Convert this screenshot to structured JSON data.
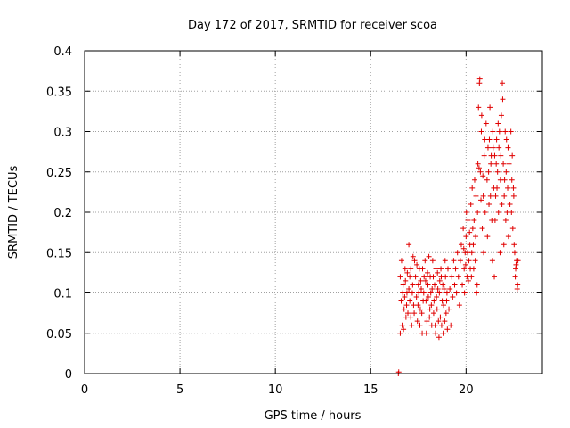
{
  "chart_data": {
    "type": "scatter",
    "title": "Day 172 of 2017, SRMTID for receiver scoa",
    "xlabel": "GPS time / hours",
    "ylabel": "SRMTID / TECUs",
    "xlim": [
      0,
      24
    ],
    "ylim": [
      0,
      0.4
    ],
    "x_ticks": [
      "0",
      "5",
      "10",
      "15",
      "20"
    ],
    "x_tick_values": [
      0,
      5,
      10,
      15,
      20
    ],
    "y_ticks": [
      "0",
      "0.05",
      "0.1",
      "0.15",
      "0.2",
      "0.25",
      "0.3",
      "0.35",
      "0.4"
    ],
    "y_tick_values": [
      0,
      0.05,
      0.1,
      0.15,
      0.2,
      0.25,
      0.3,
      0.35,
      0.4
    ],
    "grid": true,
    "marker": "+",
    "color": "#e00000",
    "points": [
      [
        16.45,
        0.0
      ],
      [
        16.47,
        0.002
      ],
      [
        16.55,
        0.12
      ],
      [
        16.6,
        0.09
      ],
      [
        16.65,
        0.06
      ],
      [
        16.7,
        0.11
      ],
      [
        16.75,
        0.08
      ],
      [
        16.8,
        0.13
      ],
      [
        16.85,
        0.07
      ],
      [
        16.9,
        0.1
      ],
      [
        16.55,
        0.05
      ],
      [
        16.62,
        0.14
      ],
      [
        16.68,
        0.1
      ],
      [
        16.72,
        0.055
      ],
      [
        16.78,
        0.095
      ],
      [
        16.82,
        0.115
      ],
      [
        16.88,
        0.085
      ],
      [
        16.92,
        0.125
      ],
      [
        16.95,
        0.075
      ],
      [
        17.0,
        0.105
      ],
      [
        17.05,
        0.09
      ],
      [
        17.1,
        0.13
      ],
      [
        17.15,
        0.06
      ],
      [
        17.2,
        0.11
      ],
      [
        17.25,
        0.085
      ],
      [
        17.3,
        0.14
      ],
      [
        17.0,
        0.16
      ],
      [
        17.05,
        0.12
      ],
      [
        17.1,
        0.07
      ],
      [
        17.18,
        0.1
      ],
      [
        17.22,
        0.145
      ],
      [
        17.28,
        0.075
      ],
      [
        17.35,
        0.12
      ],
      [
        17.4,
        0.095
      ],
      [
        17.45,
        0.065
      ],
      [
        17.5,
        0.11
      ],
      [
        17.55,
        0.13
      ],
      [
        17.6,
        0.08
      ],
      [
        17.65,
        0.105
      ],
      [
        17.7,
        0.05
      ],
      [
        17.75,
        0.09
      ],
      [
        17.8,
        0.12
      ],
      [
        17.42,
        0.135
      ],
      [
        17.48,
        0.085
      ],
      [
        17.52,
        0.1
      ],
      [
        17.58,
        0.06
      ],
      [
        17.62,
        0.115
      ],
      [
        17.68,
        0.075
      ],
      [
        17.72,
        0.13
      ],
      [
        17.78,
        0.1
      ],
      [
        17.85,
        0.14
      ],
      [
        17.9,
        0.09
      ],
      [
        17.95,
        0.065
      ],
      [
        18.0,
        0.11
      ],
      [
        18.05,
        0.145
      ],
      [
        18.1,
        0.08
      ],
      [
        18.15,
        0.1
      ],
      [
        18.2,
        0.06
      ],
      [
        17.88,
        0.115
      ],
      [
        17.92,
        0.05
      ],
      [
        17.98,
        0.125
      ],
      [
        18.02,
        0.095
      ],
      [
        18.08,
        0.07
      ],
      [
        18.12,
        0.12
      ],
      [
        18.18,
        0.085
      ],
      [
        18.22,
        0.105
      ],
      [
        18.25,
        0.14
      ],
      [
        18.3,
        0.075
      ],
      [
        18.35,
        0.11
      ],
      [
        18.4,
        0.05
      ],
      [
        18.45,
        0.095
      ],
      [
        18.5,
        0.125
      ],
      [
        18.55,
        0.065
      ],
      [
        18.6,
        0.1
      ],
      [
        18.28,
        0.12
      ],
      [
        18.32,
        0.09
      ],
      [
        18.38,
        0.06
      ],
      [
        18.42,
        0.13
      ],
      [
        18.48,
        0.08
      ],
      [
        18.52,
        0.105
      ],
      [
        18.58,
        0.045
      ],
      [
        18.62,
        0.115
      ],
      [
        18.65,
        0.07
      ],
      [
        18.7,
        0.12
      ],
      [
        18.75,
        0.09
      ],
      [
        18.8,
        0.05
      ],
      [
        18.85,
        0.105
      ],
      [
        18.9,
        0.14
      ],
      [
        18.95,
        0.075
      ],
      [
        19.0,
        0.1
      ],
      [
        18.68,
        0.13
      ],
      [
        18.72,
        0.06
      ],
      [
        18.78,
        0.11
      ],
      [
        18.82,
        0.085
      ],
      [
        18.88,
        0.065
      ],
      [
        18.92,
        0.12
      ],
      [
        18.98,
        0.09
      ],
      [
        19.02,
        0.055
      ],
      [
        19.05,
        0.13
      ],
      [
        19.1,
        0.08
      ],
      [
        19.15,
        0.105
      ],
      [
        19.2,
        0.06
      ],
      [
        19.25,
        0.12
      ],
      [
        19.3,
        0.095
      ],
      [
        19.35,
        0.14
      ],
      [
        19.4,
        0.11
      ],
      [
        19.45,
        0.13
      ],
      [
        19.5,
        0.1
      ],
      [
        19.55,
        0.15
      ],
      [
        19.6,
        0.12
      ],
      [
        19.65,
        0.085
      ],
      [
        19.7,
        0.14
      ],
      [
        19.75,
        0.16
      ],
      [
        19.8,
        0.11
      ],
      [
        19.85,
        0.18
      ],
      [
        19.9,
        0.13
      ],
      [
        19.95,
        0.15
      ],
      [
        20.0,
        0.17
      ],
      [
        20.05,
        0.12
      ],
      [
        20.1,
        0.19
      ],
      [
        20.15,
        0.14
      ],
      [
        20.2,
        0.16
      ],
      [
        19.88,
        0.155
      ],
      [
        19.92,
        0.1
      ],
      [
        19.98,
        0.135
      ],
      [
        20.02,
        0.2
      ],
      [
        20.08,
        0.15
      ],
      [
        20.12,
        0.115
      ],
      [
        20.18,
        0.175
      ],
      [
        20.22,
        0.13
      ],
      [
        20.25,
        0.21
      ],
      [
        20.3,
        0.15
      ],
      [
        20.35,
        0.18
      ],
      [
        20.4,
        0.13
      ],
      [
        20.45,
        0.24
      ],
      [
        20.5,
        0.17
      ],
      [
        20.55,
        0.1
      ],
      [
        20.6,
        0.2
      ],
      [
        20.28,
        0.12
      ],
      [
        20.32,
        0.23
      ],
      [
        20.38,
        0.16
      ],
      [
        20.42,
        0.19
      ],
      [
        20.48,
        0.14
      ],
      [
        20.52,
        0.22
      ],
      [
        20.58,
        0.11
      ],
      [
        20.62,
        0.26
      ],
      [
        20.65,
        0.33
      ],
      [
        20.7,
        0.36
      ],
      [
        20.72,
        0.365
      ],
      [
        20.75,
        0.25
      ],
      [
        20.8,
        0.3
      ],
      [
        20.85,
        0.18
      ],
      [
        20.9,
        0.22
      ],
      [
        20.95,
        0.27
      ],
      [
        20.68,
        0.255
      ],
      [
        20.78,
        0.215
      ],
      [
        20.82,
        0.32
      ],
      [
        20.88,
        0.245
      ],
      [
        20.92,
        0.15
      ],
      [
        20.98,
        0.29
      ],
      [
        21.0,
        0.2
      ],
      [
        21.05,
        0.31
      ],
      [
        21.1,
        0.24
      ],
      [
        21.15,
        0.28
      ],
      [
        21.2,
        0.21
      ],
      [
        21.25,
        0.33
      ],
      [
        21.3,
        0.26
      ],
      [
        21.35,
        0.19
      ],
      [
        21.4,
        0.3
      ],
      [
        21.45,
        0.23
      ],
      [
        21.12,
        0.17
      ],
      [
        21.18,
        0.25
      ],
      [
        21.22,
        0.29
      ],
      [
        21.28,
        0.22
      ],
      [
        21.32,
        0.27
      ],
      [
        21.38,
        0.14
      ],
      [
        21.42,
        0.28
      ],
      [
        21.48,
        0.12
      ],
      [
        21.5,
        0.27
      ],
      [
        21.55,
        0.22
      ],
      [
        21.6,
        0.29
      ],
      [
        21.65,
        0.25
      ],
      [
        21.7,
        0.2
      ],
      [
        21.75,
        0.3
      ],
      [
        21.8,
        0.24
      ],
      [
        21.85,
        0.32
      ],
      [
        21.52,
        0.19
      ],
      [
        21.58,
        0.26
      ],
      [
        21.62,
        0.23
      ],
      [
        21.68,
        0.31
      ],
      [
        21.72,
        0.28
      ],
      [
        21.78,
        0.15
      ],
      [
        21.82,
        0.27
      ],
      [
        21.88,
        0.21
      ],
      [
        21.9,
        0.36
      ],
      [
        21.92,
        0.34
      ],
      [
        21.95,
        0.26
      ],
      [
        22.0,
        0.22
      ],
      [
        22.05,
        0.3
      ],
      [
        22.1,
        0.25
      ],
      [
        22.15,
        0.2
      ],
      [
        22.2,
        0.28
      ],
      [
        21.98,
        0.16
      ],
      [
        22.02,
        0.24
      ],
      [
        22.08,
        0.19
      ],
      [
        22.12,
        0.29
      ],
      [
        22.18,
        0.23
      ],
      [
        22.22,
        0.17
      ],
      [
        22.25,
        0.26
      ],
      [
        22.3,
        0.21
      ],
      [
        22.35,
        0.3
      ],
      [
        22.4,
        0.24
      ],
      [
        22.45,
        0.18
      ],
      [
        22.5,
        0.22
      ],
      [
        22.55,
        0.15
      ],
      [
        22.6,
        0.13
      ],
      [
        22.65,
        0.14
      ],
      [
        22.7,
        0.11
      ],
      [
        22.38,
        0.2
      ],
      [
        22.42,
        0.27
      ],
      [
        22.48,
        0.23
      ],
      [
        22.52,
        0.16
      ],
      [
        22.58,
        0.12
      ],
      [
        22.62,
        0.135
      ],
      [
        22.68,
        0.105
      ],
      [
        22.72,
        0.14
      ]
    ]
  }
}
